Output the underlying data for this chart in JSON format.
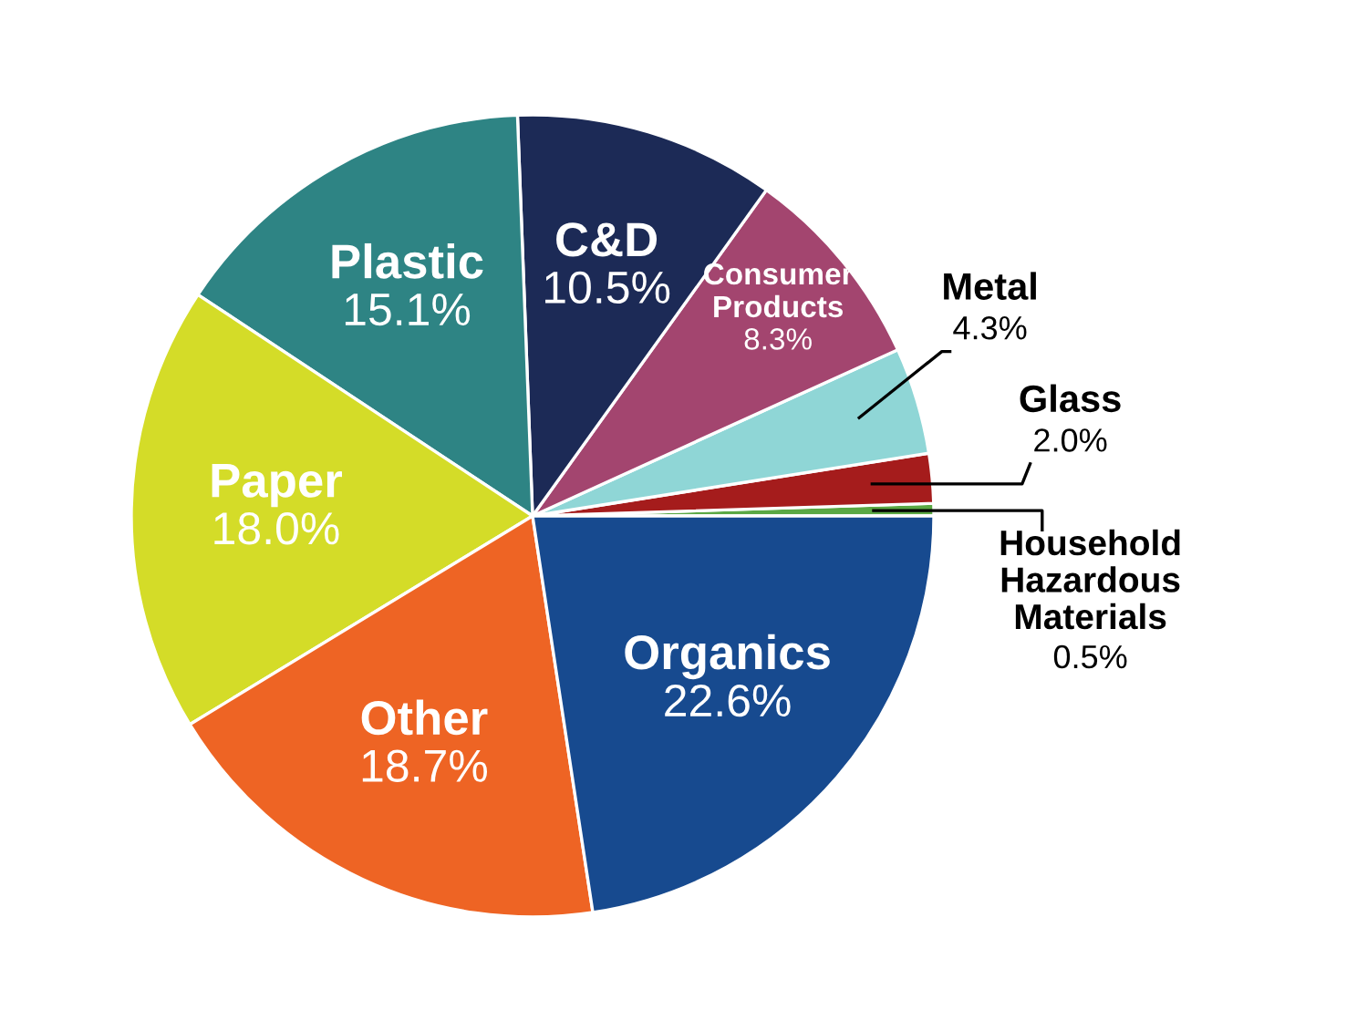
{
  "chart_data": {
    "type": "pie",
    "categories": [
      "Household\nHazardous\nMaterials",
      "Glass",
      "Metal",
      "Consumer\nProducts",
      "C&D",
      "Plastic",
      "Paper",
      "Other",
      "Organics"
    ],
    "values": [
      0.5,
      2.0,
      4.3,
      8.3,
      10.5,
      15.1,
      18.0,
      18.7,
      22.6
    ],
    "value_labels": [
      "0.5%",
      "2.0%",
      "4.3%",
      "8.3%",
      "10.5%",
      "15.1%",
      "18.0%",
      "18.7%",
      "22.6%"
    ],
    "colors": [
      "#5aa844",
      "#a51c1c",
      "#8fd6d6",
      "#a3456f",
      "#1c2a56",
      "#2e8484",
      "#d4dc28",
      "#ee6424",
      "#174a8f"
    ]
  }
}
